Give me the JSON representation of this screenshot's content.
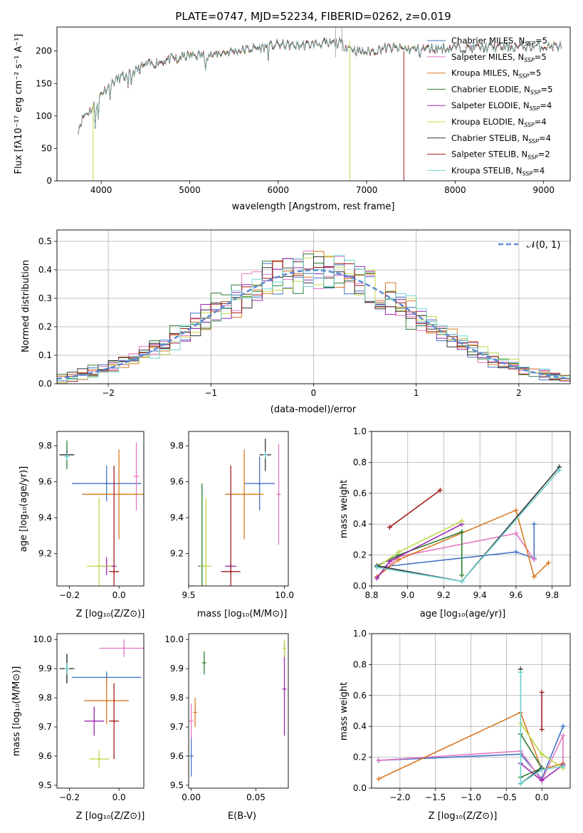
{
  "title": "PLATE=0747, MJD=52234, FIBERID=0262, z=0.019",
  "colors": [
    "#4472c4",
    "#e377c2",
    "#d97a24",
    "#2e7d32",
    "#9c27b0",
    "#c0d84a",
    "#333333",
    "#a01c1c",
    "#6fd3d3"
  ],
  "chart_data": [
    {
      "id": "spectrum",
      "type": "line",
      "xlabel": "wavelength [Angstrom, rest frame]",
      "ylabel": "Flux [fλ10⁻¹⁷ erg cm⁻² s⁻¹ A⁻¹]",
      "xlim": [
        3500,
        9300
      ],
      "ylim": [
        0,
        237
      ],
      "xticks": [
        4000,
        5000,
        6000,
        7000,
        8000,
        9000
      ],
      "yticks": [
        0,
        50,
        100,
        150,
        200
      ],
      "legend_position": "top-right",
      "continuum": [
        [
          3740,
          80
        ],
        [
          3800,
          100
        ],
        [
          3900,
          112
        ],
        [
          4000,
          135
        ],
        [
          4100,
          148
        ],
        [
          4200,
          158
        ],
        [
          4300,
          162
        ],
        [
          4400,
          170
        ],
        [
          4500,
          178
        ],
        [
          4700,
          185
        ],
        [
          5000,
          193
        ],
        [
          5200,
          194
        ],
        [
          5500,
          200
        ],
        [
          5800,
          205
        ],
        [
          6000,
          210
        ],
        [
          6200,
          208
        ],
        [
          6500,
          212
        ],
        [
          6700,
          212
        ],
        [
          6900,
          200
        ],
        [
          7000,
          198
        ],
        [
          7200,
          205
        ],
        [
          7500,
          203
        ],
        [
          8000,
          205
        ],
        [
          8500,
          206
        ],
        [
          9000,
          207
        ],
        [
          9200,
          208
        ]
      ],
      "series": [
        {
          "name": "Chabrier MILES, N_SSP=5"
        },
        {
          "name": "Salpeter MILES, N_SSP=5"
        },
        {
          "name": "Kroupa MILES, N_SSP=5"
        },
        {
          "name": "Chabrier ELODIE, N_SSP=5"
        },
        {
          "name": "Salpeter ELODIE, N_SSP=4"
        },
        {
          "name": "Kroupa ELODIE, N_SSP=4"
        },
        {
          "name": "Chabrier STELIB, N_SSP=4"
        },
        {
          "name": "Salpeter STELIB, N_SSP=2"
        },
        {
          "name": "Kroupa STELIB, N_SSP=4"
        }
      ]
    },
    {
      "id": "residuals",
      "type": "line",
      "xlabel": "(data-model)/error",
      "ylabel": "Normed distribution",
      "xlim": [
        -2.5,
        2.5
      ],
      "ylim": [
        0,
        0.54
      ],
      "xticks": [
        -2,
        -1,
        0,
        1,
        2
      ],
      "yticks": [
        0.0,
        0.1,
        0.2,
        0.3,
        0.4,
        0.5
      ],
      "bin_width": 0.1,
      "grid": true,
      "legend": "𝒩(0, 1)",
      "legend_position": "top-right",
      "gaussian": {
        "mean": 0,
        "sigma": 1
      }
    },
    {
      "id": "age-vs-Z",
      "type": "scatter",
      "xlabel": "Z [log₁₀(Z/Z⊙)]",
      "ylabel": "age  [log₁₀(age/yr)]",
      "xlim": [
        -0.25,
        0.1
      ],
      "ylim": [
        9.02,
        9.88
      ],
      "xticks": [
        -0.2,
        0.0
      ],
      "yticks": [
        9.2,
        9.4,
        9.6,
        9.8
      ],
      "points": [
        {
          "x": -0.05,
          "y": 9.59,
          "xerr": 0.14,
          "yerr": 0.1
        },
        {
          "x": 0.07,
          "y": 9.63,
          "xerr": 0.01,
          "yerr": 0.19
        },
        {
          "x": 0.0,
          "y": 9.53,
          "xerr": 0.15,
          "yerr": 0.25
        },
        {
          "x": -0.21,
          "y": 9.75,
          "xerr": 0.02,
          "yerr": 0.08
        },
        {
          "x": -0.05,
          "y": 9.13,
          "xerr": 0.04,
          "yerr": 0.05
        },
        {
          "x": -0.08,
          "y": 9.13,
          "xerr": 0.05,
          "yerr": 0.38
        },
        {
          "x": -0.21,
          "y": 9.75,
          "xerr": 0.03,
          "yerr": 0.02
        },
        {
          "x": -0.02,
          "y": 9.1,
          "xerr": 0.02,
          "yerr": 0.59
        },
        {
          "x": -0.21,
          "y": 9.74,
          "xerr": 0.01,
          "yerr": 0.02
        }
      ]
    },
    {
      "id": "age-vs-mass",
      "type": "scatter",
      "xlabel": "mass [log₁₀(M/M⊙)]",
      "ylabel": "",
      "xlim": [
        9.5,
        10.02
      ],
      "ylim": [
        9.02,
        9.88
      ],
      "xticks": [
        9.5,
        10.0
      ],
      "yticks": [
        9.2,
        9.4,
        9.6,
        9.8
      ],
      "points": [
        {
          "x": 9.87,
          "y": 9.59,
          "xerr": 0.08,
          "yerr": 0.15
        },
        {
          "x": 9.97,
          "y": 9.53,
          "xerr": 0.01,
          "yerr": 0.28
        },
        {
          "x": 9.79,
          "y": 9.53,
          "xerr": 0.1,
          "yerr": 0.25
        },
        {
          "x": 9.57,
          "y": 9.13,
          "xerr": 0.02,
          "yerr": 0.46
        },
        {
          "x": 9.72,
          "y": 9.13,
          "xerr": 0.03,
          "yerr": 0.02
        },
        {
          "x": 9.59,
          "y": 9.13,
          "xerr": 0.03,
          "yerr": 0.38
        },
        {
          "x": 9.9,
          "y": 9.75,
          "xerr": 0.03,
          "yerr": 0.09
        },
        {
          "x": 9.72,
          "y": 9.1,
          "xerr": 0.05,
          "yerr": 0.59
        },
        {
          "x": 9.9,
          "y": 9.75,
          "xerr": 0.01,
          "yerr": 0.02
        }
      ]
    },
    {
      "id": "weight-vs-age",
      "type": "line",
      "xlabel": "age  [log₁₀(age/yr)]",
      "ylabel": "mass weight",
      "xlim": [
        8.8,
        9.9
      ],
      "ylim": [
        0,
        1
      ],
      "xticks": [
        8.8,
        9.0,
        9.2,
        9.4,
        9.6,
        9.8
      ],
      "yticks": [
        0.0,
        0.2,
        0.4,
        0.6,
        0.8,
        1.0
      ],
      "grid": true,
      "series": [
        {
          "points": [
            [
              8.83,
              0.12
            ],
            [
              9.6,
              0.22
            ],
            [
              9.7,
              0.18
            ],
            [
              9.7,
              0.4
            ]
          ]
        },
        {
          "points": [
            [
              8.83,
              0.06
            ],
            [
              8.95,
              0.19
            ],
            [
              9.6,
              0.34
            ],
            [
              9.7,
              0.17
            ]
          ]
        },
        {
          "points": [
            [
              8.83,
              0.06
            ],
            [
              8.95,
              0.17
            ],
            [
              9.6,
              0.49
            ],
            [
              9.7,
              0.06
            ],
            [
              9.78,
              0.15
            ]
          ]
        },
        {
          "points": [
            [
              8.83,
              0.13
            ],
            [
              8.95,
              0.2
            ],
            [
              9.3,
              0.35
            ],
            [
              9.3,
              0.07
            ]
          ]
        },
        {
          "points": [
            [
              8.83,
              0.05
            ],
            [
              8.9,
              0.16
            ],
            [
              9.3,
              0.4
            ]
          ]
        },
        {
          "points": [
            [
              8.83,
              0.12
            ],
            [
              8.95,
              0.22
            ],
            [
              9.3,
              0.42
            ]
          ]
        },
        {
          "points": [
            [
              8.83,
              0.13
            ],
            [
              9.3,
              0.03
            ],
            [
              9.84,
              0.77
            ]
          ]
        },
        {
          "points": [
            [
              8.9,
              0.38
            ],
            [
              9.18,
              0.62
            ]
          ]
        },
        {
          "points": [
            [
              8.83,
              0.12
            ],
            [
              9.3,
              0.03
            ],
            [
              9.84,
              0.75
            ]
          ]
        }
      ]
    },
    {
      "id": "mass-vs-Z",
      "type": "scatter",
      "xlabel": "Z [log₁₀(Z/Z⊙)]",
      "ylabel": "mass [log₁₀(M/M⊙)]",
      "xlim": [
        -0.25,
        0.1
      ],
      "ylim": [
        9.49,
        10.02
      ],
      "xticks": [
        -0.2,
        0.0
      ],
      "yticks": [
        9.5,
        9.6,
        9.7,
        9.8,
        9.9,
        10.0
      ],
      "points": [
        {
          "x": -0.05,
          "y": 9.87,
          "xerr": 0.14,
          "yerr": 0.02
        },
        {
          "x": 0.02,
          "y": 9.97,
          "xerr": 0.1,
          "yerr": 0.03
        },
        {
          "x": -0.05,
          "y": 9.79,
          "xerr": 0.09,
          "yerr": 0.08
        },
        {
          "x": -0.21,
          "y": 9.9,
          "xerr": 0.02,
          "yerr": 0.05
        },
        {
          "x": -0.1,
          "y": 9.72,
          "xerr": 0.04,
          "yerr": 0.05
        },
        {
          "x": -0.08,
          "y": 9.59,
          "xerr": 0.04,
          "yerr": 0.03
        },
        {
          "x": -0.21,
          "y": 9.9,
          "xerr": 0.03,
          "yerr": 0.05
        },
        {
          "x": -0.02,
          "y": 9.72,
          "xerr": 0.02,
          "yerr": 0.13
        },
        {
          "x": -0.21,
          "y": 9.9,
          "xerr": 0.01,
          "yerr": 0.02
        }
      ]
    },
    {
      "id": "mass-vs-ebv",
      "type": "scatter",
      "xlabel": "E(B-V)",
      "ylabel": "",
      "xlim": [
        -0.002,
        0.075
      ],
      "ylim": [
        9.49,
        10.02
      ],
      "xticks": [
        0.0,
        0.05
      ],
      "yticks": [
        9.5,
        9.6,
        9.7,
        9.8,
        9.9,
        10.0
      ],
      "points": [
        {
          "x": 0.0,
          "y": 9.6,
          "yerr": 0.07
        },
        {
          "x": 0.0,
          "y": 9.72,
          "yerr": 0.06
        },
        {
          "x": 0.003,
          "y": 9.75,
          "yerr": 0.05
        },
        {
          "x": 0.01,
          "y": 9.92,
          "yerr": 0.04
        },
        {
          "x": 0.072,
          "y": 9.83,
          "yerr": 0.16
        },
        {
          "x": 0.072,
          "y": 9.97,
          "yerr": 0.03
        }
      ]
    },
    {
      "id": "weight-vs-Z",
      "type": "line",
      "xlabel": "Z [log₁₀(Z/Z⊙)]",
      "ylabel": "mass weight",
      "xlim": [
        -2.4,
        0.4
      ],
      "ylim": [
        0,
        1
      ],
      "xticks": [
        -2.0,
        -1.5,
        -1.0,
        -0.5,
        0.0
      ],
      "yticks": [
        0.0,
        0.2,
        0.4,
        0.6,
        0.8,
        1.0
      ],
      "grid": true,
      "series": [
        {
          "points": [
            [
              -2.3,
              0.18
            ],
            [
              -0.3,
              0.22
            ],
            [
              0.0,
              0.06
            ],
            [
              0.3,
              0.4
            ]
          ]
        },
        {
          "points": [
            [
              -2.3,
              0.18
            ],
            [
              -0.3,
              0.24
            ],
            [
              0.0,
              0.05
            ],
            [
              0.3,
              0.34
            ],
            [
              0.3,
              0.16
            ]
          ]
        },
        {
          "points": [
            [
              -2.3,
              0.06
            ],
            [
              -0.3,
              0.49
            ],
            [
              0.0,
              0.12
            ],
            [
              0.3,
              0.16
            ]
          ]
        },
        {
          "points": [
            [
              -0.3,
              0.35
            ],
            [
              0.0,
              0.13
            ],
            [
              -0.3,
              0.07
            ]
          ]
        },
        {
          "points": [
            [
              -0.3,
              0.16
            ],
            [
              0.0,
              0.05
            ],
            [
              0.3,
              0.15
            ]
          ]
        },
        {
          "points": [
            [
              -0.3,
              0.42
            ],
            [
              0.0,
              0.22
            ],
            [
              0.3,
              0.13
            ]
          ]
        },
        {
          "points": [
            [
              -0.3,
              0.77
            ],
            [
              -0.3,
              0.03
            ],
            [
              0.0,
              0.13
            ]
          ]
        },
        {
          "points": [
            [
              0.0,
              0.62
            ],
            [
              0.0,
              0.38
            ]
          ]
        },
        {
          "points": [
            [
              -0.3,
              0.75
            ],
            [
              -0.3,
              0.03
            ],
            [
              0.0,
              0.12
            ],
            [
              0.3,
              0.14
            ]
          ]
        }
      ]
    }
  ]
}
